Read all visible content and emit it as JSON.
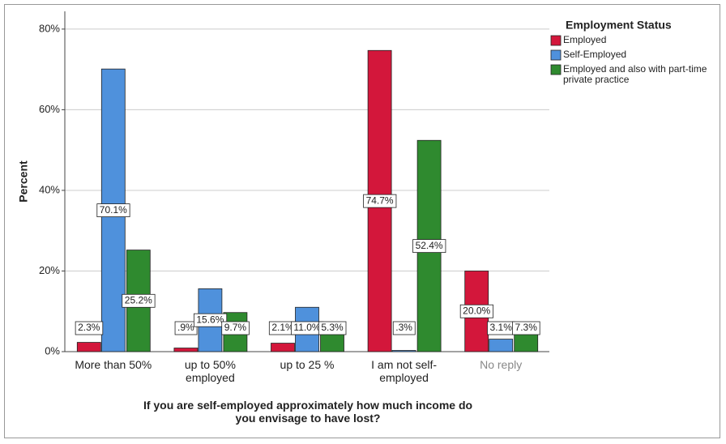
{
  "chart_data": {
    "type": "bar",
    "y_label": "Percent",
    "x_label": "If you are self-employed approximately how much income do you envisage to have lost?",
    "legend_title": "Employment Status",
    "legend": "right",
    "categories": [
      "More than 50%",
      "up to 50% employed",
      "up to 25 %",
      "I am not self-employed",
      "No reply"
    ],
    "series": [
      {
        "name": "Employed",
        "color": "#d3173b",
        "values": [
          2.3,
          0.9,
          2.1,
          74.7,
          20.0
        ],
        "value_labels": [
          "2.3%",
          ".9%",
          "2.1%",
          "74.7%",
          "20.0%"
        ]
      },
      {
        "name": "Self-Employed",
        "color": "#4f91dc",
        "values": [
          70.1,
          15.6,
          11.0,
          0.3,
          3.1
        ],
        "value_labels": [
          "70.1%",
          "15.6%",
          "11.0%",
          ".3%",
          "3.1%"
        ]
      },
      {
        "name": "Employed and also with part-time private practice",
        "color": "#2f8a2f",
        "values": [
          25.2,
          9.7,
          5.3,
          52.4,
          7.3
        ],
        "value_labels": [
          "25.2%",
          "9.7%",
          "5.3%",
          "52.4%",
          "7.3%"
        ]
      }
    ],
    "ylim": [
      0,
      84.4
    ],
    "yticks": [
      {
        "value": 0,
        "label": "0%"
      },
      {
        "value": 20,
        "label": "20%"
      },
      {
        "value": 40,
        "label": "40%"
      },
      {
        "value": 60,
        "label": "60%"
      },
      {
        "value": 80,
        "label": "80%"
      }
    ],
    "grid": true
  }
}
